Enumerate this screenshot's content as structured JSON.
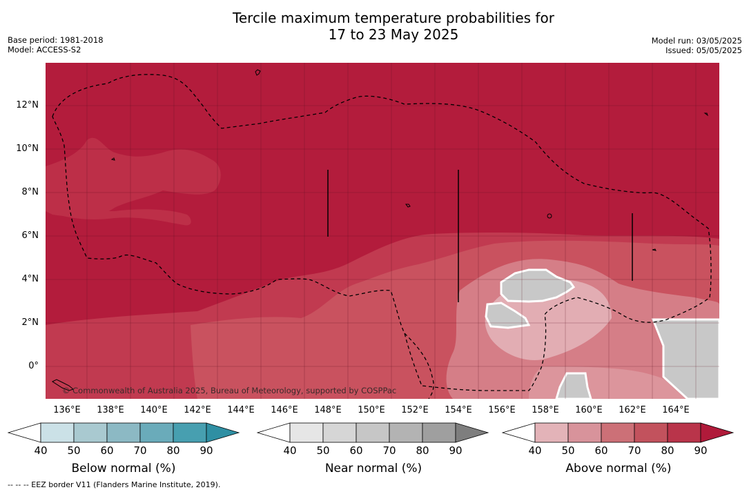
{
  "header": {
    "title_line1": "Tercile maximum temperature probabilities for",
    "title_line2": "17 to 23 May 2025",
    "base_period": "Base period: 1981-2018",
    "model": "Model: ACCESS-S2",
    "model_run": "Model run: 03/05/2025",
    "issued": "Issued: 05/05/2025"
  },
  "map": {
    "lat_labels": [
      "12°N",
      "10°N",
      "8°N",
      "6°N",
      "4°N",
      "2°N",
      "0°"
    ],
    "lon_labels": [
      "136°E",
      "138°E",
      "140°E",
      "142°E",
      "144°E",
      "146°E",
      "148°E",
      "150°E",
      "152°E",
      "154°E",
      "156°E",
      "158°E",
      "160°E",
      "162°E",
      "164°E"
    ],
    "credit": "© Commonwealth of Australia 2025, Bureau of Meteorology, supported by COSPPac",
    "colors": {
      "above_90": "#b31c3c",
      "above_80": "#c2394f",
      "above_70": "#cc5866",
      "above_60": "#d8838c",
      "above_50": "#e3b3b8",
      "near_50": "#c8c8c8"
    }
  },
  "colorbars": [
    {
      "title": "Below normal (%)",
      "ticks": [
        "40",
        "50",
        "60",
        "70",
        "80",
        "90"
      ],
      "colors": [
        "#cbe1e7",
        "#a9c9d0",
        "#8cb9c4",
        "#6aabba",
        "#479fb0",
        "#2f8fa3"
      ]
    },
    {
      "title": "Near normal (%)",
      "ticks": [
        "40",
        "50",
        "60",
        "70",
        "80",
        "90"
      ],
      "colors": [
        "#e6e6e6",
        "#d6d6d6",
        "#c6c6c6",
        "#b3b3b3",
        "#9f9f9f",
        "#7e7e7e"
      ]
    },
    {
      "title": "Above normal (%)",
      "ticks": [
        "40",
        "50",
        "60",
        "70",
        "80",
        "90"
      ],
      "colors": [
        "#e3b3b8",
        "#d8939b",
        "#cc7077",
        "#c2525d",
        "#b9344a",
        "#b01a3a"
      ]
    }
  ],
  "footnote": "--  --  -- EEZ border V11 (Flanders Marine Institute, 2019)."
}
